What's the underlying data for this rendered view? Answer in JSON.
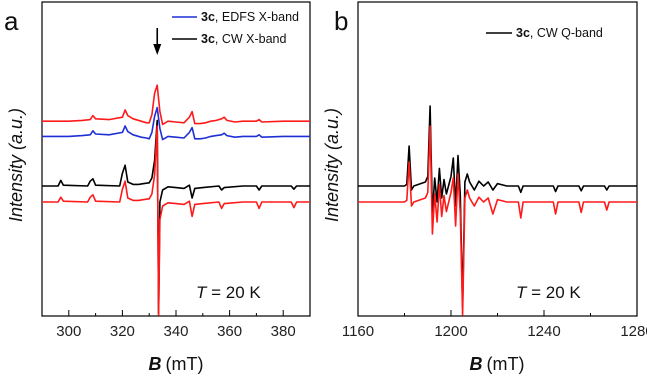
{
  "colors": {
    "red": "#ff1a1a",
    "blue": "#1f2fd6",
    "black": "#000000"
  },
  "chart_data": [
    {
      "type": "line",
      "panel": "a",
      "xlabel_symbol": "B",
      "xlabel_unit": "(mT)",
      "ylabel": "Intensity (a.u.)",
      "xlim": [
        290,
        390
      ],
      "xticks": [
        "300",
        "320",
        "340",
        "360",
        "380"
      ],
      "xtick_values": [
        300,
        320,
        340,
        360,
        380
      ],
      "annotation": {
        "symbol": "T",
        "text": " = 20 K"
      },
      "arrow_at_x": 333,
      "legend": [
        {
          "bold": "3c",
          "rest": ", EDFS X-band",
          "color": "#1f2fd6"
        },
        {
          "bold": "3c",
          "rest": ", CW X-band",
          "color": "#000000"
        }
      ],
      "series": [
        {
          "name": "3c, EDFS X-band",
          "color": "#1f2fd6",
          "baseline": 0.62,
          "points": [
            [
              290,
              0
            ],
            [
              300,
              0
            ],
            [
              305,
              0.01
            ],
            [
              308,
              0.02
            ],
            [
              309,
              0.07
            ],
            [
              310,
              0.03
            ],
            [
              315,
              0.02
            ],
            [
              320,
              0.05
            ],
            [
              321,
              0.13
            ],
            [
              322,
              0.06
            ],
            [
              324,
              0.02
            ],
            [
              327,
              -0.01
            ],
            [
              329,
              -0.02
            ],
            [
              330,
              -0.03
            ],
            [
              331,
              0.05
            ],
            [
              332,
              0.25
            ],
            [
              333,
              0.36
            ],
            [
              334,
              0.1
            ],
            [
              335,
              -0.04
            ],
            [
              337,
              0
            ],
            [
              340,
              -0.01
            ],
            [
              343,
              -0.02
            ],
            [
              345,
              0.05
            ],
            [
              346,
              0.11
            ],
            [
              347,
              -0.03
            ],
            [
              349,
              -0.03
            ],
            [
              351,
              -0.02
            ],
            [
              353,
              0
            ],
            [
              355,
              0.01
            ],
            [
              357,
              0.02
            ],
            [
              358,
              0.04
            ],
            [
              359,
              0.01
            ],
            [
              362,
              -0.01
            ],
            [
              365,
              0
            ],
            [
              370,
              0
            ],
            [
              371,
              0.02
            ],
            [
              372,
              -0.01
            ],
            [
              380,
              0
            ],
            [
              385,
              0
            ],
            [
              390,
              0
            ]
          ]
        },
        {
          "name": "",
          "color": "#ff1a1a",
          "baseline": 0.81,
          "points": [
            [
              290,
              0
            ],
            [
              300,
              0
            ],
            [
              305,
              0.01
            ],
            [
              308,
              0.02
            ],
            [
              309,
              0.07
            ],
            [
              310,
              0.03
            ],
            [
              315,
              0.02
            ],
            [
              320,
              0.05
            ],
            [
              321,
              0.14
            ],
            [
              322,
              0.07
            ],
            [
              324,
              0.03
            ],
            [
              327,
              0
            ],
            [
              329,
              -0.02
            ],
            [
              330,
              -0.02
            ],
            [
              331,
              0.08
            ],
            [
              332,
              0.35
            ],
            [
              333,
              0.45
            ],
            [
              334,
              0.12
            ],
            [
              335,
              -0.04
            ],
            [
              337,
              0
            ],
            [
              340,
              -0.01
            ],
            [
              343,
              -0.02
            ],
            [
              345,
              0.05
            ],
            [
              346,
              0.12
            ],
            [
              347,
              -0.03
            ],
            [
              349,
              -0.03
            ],
            [
              351,
              -0.02
            ],
            [
              353,
              0
            ],
            [
              355,
              0.01
            ],
            [
              357,
              0.03
            ],
            [
              358,
              0.05
            ],
            [
              359,
              0.01
            ],
            [
              362,
              -0.01
            ],
            [
              365,
              0
            ],
            [
              370,
              0
            ],
            [
              371,
              0.02
            ],
            [
              372,
              -0.01
            ],
            [
              380,
              0
            ],
            [
              385,
              0
            ],
            [
              390,
              0
            ]
          ]
        },
        {
          "name": "3c, CW X-band",
          "color": "#000000",
          "baseline": 0,
          "points": [
            [
              290,
              0
            ],
            [
              296,
              0
            ],
            [
              297,
              0.07
            ],
            [
              298,
              0.01
            ],
            [
              307,
              0
            ],
            [
              308,
              0.06
            ],
            [
              309,
              0.09
            ],
            [
              310,
              0.01
            ],
            [
              319,
              0
            ],
            [
              320,
              0.16
            ],
            [
              321,
              0.26
            ],
            [
              322,
              0.05
            ],
            [
              324,
              0.02
            ],
            [
              326,
              0.02
            ],
            [
              328,
              0.03
            ],
            [
              330,
              0.04
            ],
            [
              331,
              0.1
            ],
            [
              332,
              0.32
            ],
            [
              333,
              0.82
            ],
            [
              333.5,
              -1.6
            ],
            [
              334,
              -0.2
            ],
            [
              335,
              -0.05
            ],
            [
              337,
              -0.01
            ],
            [
              340,
              -0.02
            ],
            [
              343,
              -0.03
            ],
            [
              345,
              0.01
            ],
            [
              346,
              -0.15
            ],
            [
              347,
              -0.03
            ],
            [
              350,
              -0.02
            ],
            [
              356,
              0
            ],
            [
              357,
              -0.05
            ],
            [
              358,
              -0.02
            ],
            [
              365,
              0
            ],
            [
              370,
              0
            ],
            [
              371,
              -0.05
            ],
            [
              372,
              0
            ],
            [
              380,
              0
            ],
            [
              383,
              0
            ],
            [
              384,
              -0.04
            ],
            [
              385,
              0
            ],
            [
              390,
              0
            ]
          ]
        },
        {
          "name": "",
          "color": "#ff1a1a",
          "baseline": -0.2,
          "points": [
            [
              290,
              0
            ],
            [
              296,
              0
            ],
            [
              297,
              0.06
            ],
            [
              298,
              0.01
            ],
            [
              307,
              0
            ],
            [
              308,
              0.06
            ],
            [
              309,
              0.09
            ],
            [
              310,
              0.01
            ],
            [
              319,
              0
            ],
            [
              320,
              0.16
            ],
            [
              321,
              0.26
            ],
            [
              322,
              0.05
            ],
            [
              324,
              0.02
            ],
            [
              326,
              0.02
            ],
            [
              328,
              0.03
            ],
            [
              330,
              0.04
            ],
            [
              331,
              0.1
            ],
            [
              332,
              0.34
            ],
            [
              333,
              0.95
            ],
            [
              333.5,
              -1.7
            ],
            [
              334,
              -0.22
            ],
            [
              335,
              -0.05
            ],
            [
              337,
              -0.01
            ],
            [
              340,
              -0.02
            ],
            [
              343,
              -0.03
            ],
            [
              345,
              0.01
            ],
            [
              346,
              -0.18
            ],
            [
              347,
              -0.03
            ],
            [
              350,
              -0.02
            ],
            [
              356,
              0
            ],
            [
              357,
              -0.08
            ],
            [
              358,
              -0.02
            ],
            [
              365,
              0
            ],
            [
              370,
              0
            ],
            [
              371,
              -0.08
            ],
            [
              372,
              0
            ],
            [
              380,
              0
            ],
            [
              383,
              0
            ],
            [
              384,
              -0.07
            ],
            [
              385,
              0
            ],
            [
              390,
              0
            ]
          ]
        }
      ]
    },
    {
      "type": "line",
      "panel": "b",
      "xlabel_symbol": "B",
      "xlabel_unit": "(mT)",
      "ylabel": "Intensity (a.u.)",
      "xlim": [
        1160,
        1280
      ],
      "xticks": [
        "1160",
        "1200",
        "1240",
        "1280"
      ],
      "xtick_values": [
        1160,
        1200,
        1240,
        1280
      ],
      "annotation": {
        "symbol": "T",
        "text": " = 20 K"
      },
      "legend": [
        {
          "bold": "3c",
          "rest": ", CW Q-band",
          "color": "#000000"
        }
      ],
      "series": [
        {
          "name": "3c, CW Q-band",
          "color": "#000000",
          "baseline": 0,
          "points": [
            [
              1160,
              0
            ],
            [
              1180,
              0
            ],
            [
              1181,
              0.02
            ],
            [
              1182,
              0.5
            ],
            [
              1183,
              -0.05
            ],
            [
              1184,
              0
            ],
            [
              1189,
              0.05
            ],
            [
              1190,
              0.12
            ],
            [
              1191,
              1.0
            ],
            [
              1192,
              -0.35
            ],
            [
              1193,
              0.1
            ],
            [
              1194,
              -0.2
            ],
            [
              1195,
              0.22
            ],
            [
              1196,
              -0.15
            ],
            [
              1197,
              0.08
            ],
            [
              1198,
              -0.1
            ],
            [
              1200,
              0.12
            ],
            [
              1201,
              0.35
            ],
            [
              1202,
              -0.25
            ],
            [
              1203,
              0.38
            ],
            [
              1204,
              -0.12
            ],
            [
              1205,
              -1.5
            ],
            [
              1206,
              0.05
            ],
            [
              1207,
              0.15
            ],
            [
              1208,
              0.05
            ],
            [
              1210,
              -0.05
            ],
            [
              1212,
              0.06
            ],
            [
              1214,
              0
            ],
            [
              1216,
              0.05
            ],
            [
              1218,
              -0.05
            ],
            [
              1220,
              0.03
            ],
            [
              1224,
              0
            ],
            [
              1229,
              0
            ],
            [
              1230,
              -0.08
            ],
            [
              1231,
              0
            ],
            [
              1240,
              0
            ],
            [
              1244,
              0
            ],
            [
              1245,
              -0.07
            ],
            [
              1246,
              0
            ],
            [
              1255,
              0
            ],
            [
              1256,
              -0.06
            ],
            [
              1257,
              0
            ],
            [
              1266,
              0
            ],
            [
              1267,
              -0.05
            ],
            [
              1268,
              0
            ],
            [
              1280,
              0
            ]
          ]
        },
        {
          "name": "",
          "color": "#ff1a1a",
          "baseline": -0.2,
          "points": [
            [
              1160,
              0
            ],
            [
              1180,
              0
            ],
            [
              1181,
              0.02
            ],
            [
              1182,
              0.5
            ],
            [
              1183,
              -0.05
            ],
            [
              1184,
              0
            ],
            [
              1189,
              0.05
            ],
            [
              1190,
              0.12
            ],
            [
              1191,
              0.95
            ],
            [
              1192,
              -0.4
            ],
            [
              1193,
              0.1
            ],
            [
              1194,
              -0.25
            ],
            [
              1195,
              0.22
            ],
            [
              1196,
              -0.18
            ],
            [
              1197,
              0.08
            ],
            [
              1198,
              -0.12
            ],
            [
              1200,
              0.12
            ],
            [
              1201,
              0.3
            ],
            [
              1202,
              -0.3
            ],
            [
              1203,
              0.35
            ],
            [
              1204,
              -0.15
            ],
            [
              1205,
              -1.6
            ],
            [
              1206,
              0.05
            ],
            [
              1207,
              0.15
            ],
            [
              1208,
              0.05
            ],
            [
              1210,
              -0.05
            ],
            [
              1212,
              0.06
            ],
            [
              1214,
              0
            ],
            [
              1216,
              0.05
            ],
            [
              1218,
              -0.15
            ],
            [
              1220,
              0.03
            ],
            [
              1224,
              0
            ],
            [
              1229,
              0
            ],
            [
              1230,
              -0.2
            ],
            [
              1231,
              0
            ],
            [
              1240,
              0
            ],
            [
              1244,
              0
            ],
            [
              1245,
              -0.15
            ],
            [
              1246,
              0
            ],
            [
              1255,
              0
            ],
            [
              1256,
              -0.13
            ],
            [
              1257,
              0
            ],
            [
              1266,
              0
            ],
            [
              1267,
              -0.1
            ],
            [
              1268,
              0
            ],
            [
              1280,
              0
            ]
          ]
        }
      ]
    }
  ]
}
